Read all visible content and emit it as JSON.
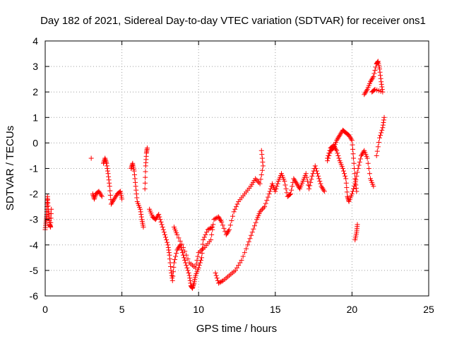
{
  "chart_data": {
    "type": "scatter",
    "title": "Day 182 of 2021, Sidereal Day-to-day VTEC variation (SDTVAR) for receiver ons1",
    "xlabel": "GPS time / hours",
    "ylabel": "SDTVAR / TECUs",
    "xlim": [
      0,
      25
    ],
    "ylim": [
      -6,
      4
    ],
    "x_ticks": [
      "0",
      "5",
      "10",
      "15",
      "20",
      "25"
    ],
    "y_ticks": [
      "-6",
      "-5",
      "-4",
      "-3",
      "-2",
      "-1",
      "0",
      "1",
      "2",
      "3",
      "4"
    ],
    "grid": true,
    "marker": "plus",
    "color": "#ff0000",
    "series": [
      {
        "points": [
          [
            0.0,
            -3.4
          ],
          [
            0.05,
            -3.1
          ],
          [
            0.1,
            -2.8
          ],
          [
            0.12,
            -2.4
          ],
          [
            0.15,
            -2.1
          ],
          [
            0.2,
            -2.6
          ],
          [
            0.25,
            -2.9
          ],
          [
            0.3,
            -3.2
          ],
          [
            0.35,
            -3.3
          ],
          [
            0.4,
            -2.6
          ],
          [
            3.0,
            -0.6
          ],
          [
            3.1,
            -2.0
          ],
          [
            3.2,
            -2.2
          ],
          [
            3.3,
            -2.0
          ],
          [
            3.5,
            -1.9
          ],
          [
            3.7,
            -2.1
          ],
          [
            3.8,
            -0.8
          ],
          [
            3.9,
            -0.6
          ],
          [
            4.0,
            -0.8
          ],
          [
            4.1,
            -1.2
          ],
          [
            4.2,
            -1.7
          ],
          [
            4.3,
            -2.4
          ],
          [
            4.5,
            -2.2
          ],
          [
            4.7,
            -2.0
          ],
          [
            4.9,
            -1.9
          ],
          [
            5.0,
            -2.2
          ],
          [
            5.6,
            -1.0
          ],
          [
            5.7,
            -0.8
          ],
          [
            5.8,
            -1.1
          ],
          [
            5.9,
            -1.7
          ],
          [
            6.0,
            -2.3
          ],
          [
            6.2,
            -2.6
          ],
          [
            6.3,
            -3.0
          ],
          [
            6.4,
            -3.3
          ],
          [
            6.5,
            -1.8
          ],
          [
            6.55,
            -0.9
          ],
          [
            6.6,
            -0.4
          ],
          [
            6.65,
            -0.2
          ],
          [
            6.8,
            -2.6
          ],
          [
            7.0,
            -2.9
          ],
          [
            7.2,
            -3.0
          ],
          [
            7.4,
            -2.8
          ],
          [
            7.6,
            -3.2
          ],
          [
            7.8,
            -3.6
          ],
          [
            8.0,
            -4.0
          ],
          [
            8.1,
            -4.4
          ],
          [
            8.2,
            -5.0
          ],
          [
            8.3,
            -5.4
          ],
          [
            8.4,
            -4.7
          ],
          [
            8.6,
            -4.2
          ],
          [
            8.8,
            -4.0
          ],
          [
            9.0,
            -4.4
          ],
          [
            9.2,
            -4.8
          ],
          [
            9.4,
            -5.2
          ],
          [
            9.5,
            -5.6
          ],
          [
            9.6,
            -5.7
          ],
          [
            9.7,
            -5.5
          ],
          [
            9.8,
            -5.2
          ],
          [
            10.0,
            -4.9
          ],
          [
            10.2,
            -4.5
          ],
          [
            10.3,
            -3.8
          ],
          [
            10.6,
            -3.4
          ],
          [
            10.9,
            -3.3
          ],
          [
            8.4,
            -3.3
          ],
          [
            8.6,
            -3.6
          ],
          [
            9.0,
            -4.1
          ],
          [
            9.4,
            -4.7
          ],
          [
            9.8,
            -4.9
          ],
          [
            10.0,
            -4.3
          ],
          [
            10.4,
            -4.1
          ],
          [
            10.8,
            -3.8
          ],
          [
            11.0,
            -3.0
          ],
          [
            11.3,
            -2.9
          ],
          [
            11.5,
            -3.1
          ],
          [
            11.8,
            -3.6
          ],
          [
            12.0,
            -3.4
          ],
          [
            12.3,
            -2.7
          ],
          [
            12.6,
            -2.3
          ],
          [
            13.0,
            -2.0
          ],
          [
            13.4,
            -1.7
          ],
          [
            13.7,
            -1.4
          ],
          [
            14.0,
            -1.6
          ],
          [
            14.2,
            -0.9
          ],
          [
            14.1,
            -0.3
          ],
          [
            11.1,
            -5.1
          ],
          [
            11.3,
            -5.5
          ],
          [
            11.6,
            -5.4
          ],
          [
            12.0,
            -5.2
          ],
          [
            12.4,
            -5.0
          ],
          [
            12.8,
            -4.6
          ],
          [
            13.2,
            -4.0
          ],
          [
            13.5,
            -3.5
          ],
          [
            13.8,
            -3.0
          ],
          [
            14.0,
            -2.7
          ],
          [
            14.3,
            -2.5
          ],
          [
            14.6,
            -2.0
          ],
          [
            14.8,
            -1.6
          ],
          [
            15.0,
            -1.9
          ],
          [
            15.2,
            -1.5
          ],
          [
            15.4,
            -1.2
          ],
          [
            15.6,
            -1.5
          ],
          [
            15.8,
            -2.1
          ],
          [
            16.0,
            -2.0
          ],
          [
            16.2,
            -1.4
          ],
          [
            16.4,
            -1.6
          ],
          [
            16.6,
            -1.8
          ],
          [
            16.8,
            -1.5
          ],
          [
            17.0,
            -1.2
          ],
          [
            17.2,
            -1.8
          ],
          [
            17.4,
            -1.3
          ],
          [
            17.6,
            -0.9
          ],
          [
            17.8,
            -1.3
          ],
          [
            18.0,
            -1.7
          ],
          [
            18.2,
            -1.9
          ],
          [
            18.4,
            -0.7
          ],
          [
            18.6,
            -0.3
          ],
          [
            18.8,
            -0.2
          ],
          [
            19.0,
            0.1
          ],
          [
            19.2,
            0.3
          ],
          [
            19.4,
            0.5
          ],
          [
            19.6,
            0.4
          ],
          [
            19.8,
            0.3
          ],
          [
            20.0,
            0.1
          ],
          [
            20.1,
            -0.6
          ],
          [
            20.2,
            -1.4
          ],
          [
            20.3,
            -1.9
          ],
          [
            18.4,
            -0.6
          ],
          [
            18.6,
            -0.2
          ],
          [
            18.8,
            -0.1
          ],
          [
            19.0,
            -0.3
          ],
          [
            19.2,
            -0.7
          ],
          [
            19.4,
            -1.0
          ],
          [
            19.6,
            -1.4
          ],
          [
            19.7,
            -2.1
          ],
          [
            19.8,
            -2.3
          ],
          [
            20.0,
            -2.0
          ],
          [
            20.2,
            -1.6
          ],
          [
            20.4,
            -1.0
          ],
          [
            20.6,
            -0.5
          ],
          [
            20.8,
            -0.3
          ],
          [
            21.0,
            -0.6
          ],
          [
            21.2,
            -1.4
          ],
          [
            21.4,
            -1.7
          ],
          [
            21.6,
            -0.5
          ],
          [
            21.8,
            0.2
          ],
          [
            22.0,
            0.6
          ],
          [
            22.1,
            1.0
          ],
          [
            20.2,
            -3.8
          ],
          [
            20.3,
            -3.5
          ],
          [
            20.35,
            -3.2
          ],
          [
            20.8,
            1.9
          ],
          [
            21.0,
            2.1
          ],
          [
            21.2,
            2.4
          ],
          [
            21.4,
            2.6
          ],
          [
            21.6,
            3.1
          ],
          [
            21.7,
            3.2
          ],
          [
            21.8,
            2.9
          ],
          [
            21.9,
            2.4
          ],
          [
            22.0,
            2.0
          ],
          [
            21.5,
            2.1
          ],
          [
            21.3,
            2.0
          ]
        ]
      }
    ]
  }
}
